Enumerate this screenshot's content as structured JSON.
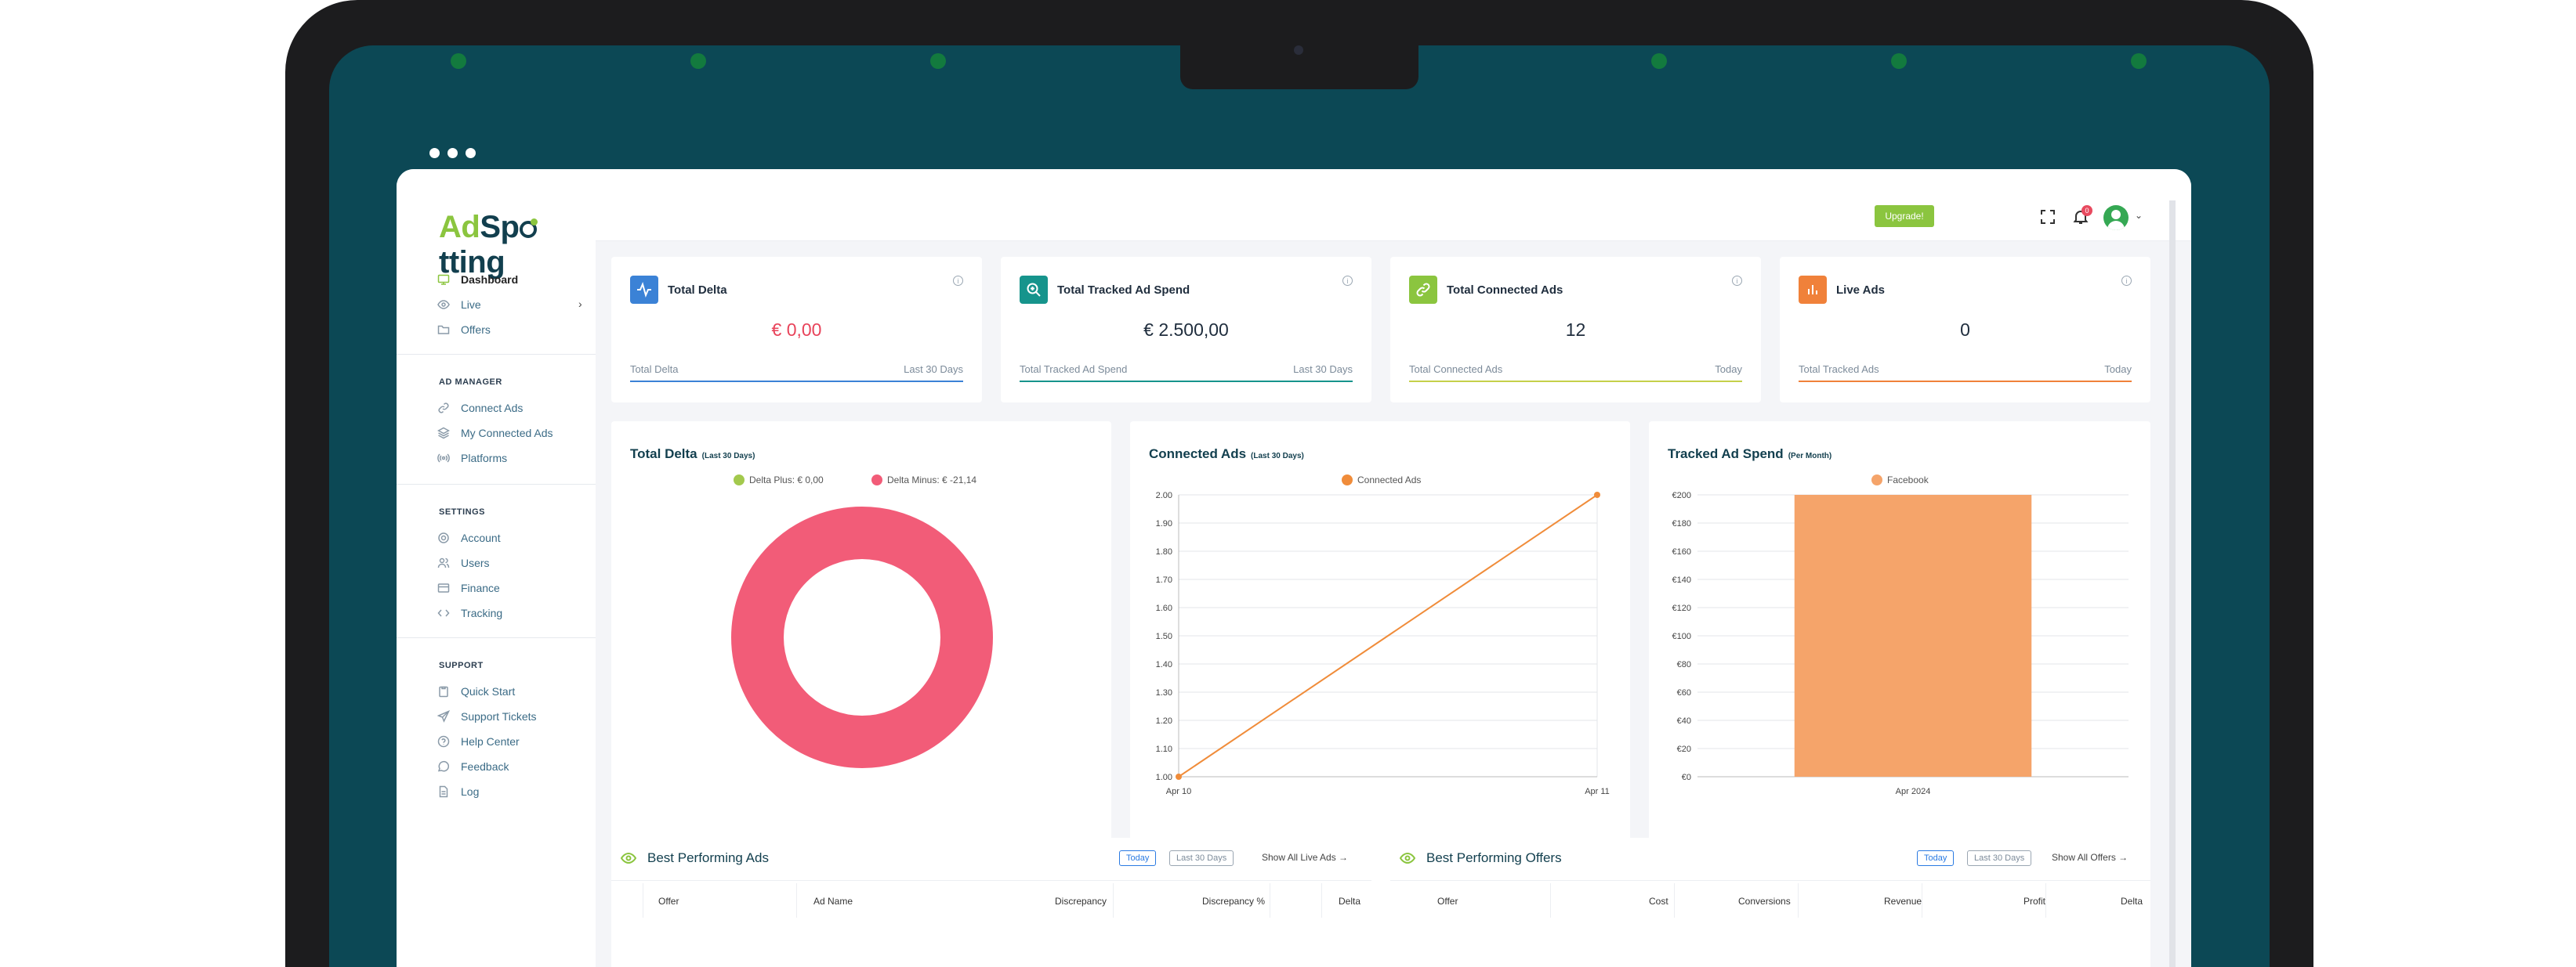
{
  "sidebar": {
    "items": [
      {
        "label": "Dashboard",
        "icon": "monitor-icon"
      },
      {
        "label": "Live",
        "icon": "eye-icon"
      },
      {
        "label": "Offers",
        "icon": "folder-icon"
      }
    ],
    "sections": [
      {
        "title": "AD MANAGER",
        "items": [
          {
            "label": "Connect Ads",
            "icon": "link-icon"
          },
          {
            "label": "My Connected Ads",
            "icon": "layers-icon"
          },
          {
            "label": "Platforms",
            "icon": "broadcast-icon"
          }
        ]
      },
      {
        "title": "SETTINGS",
        "items": [
          {
            "label": "Account",
            "icon": "gear-icon"
          },
          {
            "label": "Users",
            "icon": "users-icon"
          },
          {
            "label": "Finance",
            "icon": "credit-card-icon"
          },
          {
            "label": "Tracking",
            "icon": "code-icon"
          }
        ]
      },
      {
        "title": "SUPPORT",
        "items": [
          {
            "label": "Quick Start",
            "icon": "clipboard-icon"
          },
          {
            "label": "Support Tickets",
            "icon": "send-icon"
          },
          {
            "label": "Help Center",
            "icon": "help-circle-icon"
          },
          {
            "label": "Feedback",
            "icon": "chat-icon"
          },
          {
            "label": "Log",
            "icon": "file-icon"
          }
        ]
      }
    ]
  },
  "topbar": {
    "upgrade_label": "Upgrade!",
    "notification_count": "0"
  },
  "stats": [
    {
      "title": "Total Delta",
      "value": "€ 0,00",
      "foot_left": "Total Delta",
      "foot_right": "Last 30 Days",
      "icon": "activity-icon",
      "icon_color": "#3b82d6",
      "line_color": "#3b82d6",
      "value_color": "#e8435a"
    },
    {
      "title": "Total Tracked Ad Spend",
      "value": "€ 2.500,00",
      "foot_left": "Total Tracked Ad Spend",
      "foot_right": "Last 30 Days",
      "icon": "zoom-in-icon",
      "icon_color": "#16948c",
      "line_color": "#16948c",
      "value_color": "#1f2d3d"
    },
    {
      "title": "Total Connected Ads",
      "value": "12",
      "foot_left": "Total Connected Ads",
      "foot_right": "Today",
      "icon": "link-icon",
      "icon_color": "#8bc53f",
      "line_color": "#c5d04a",
      "value_color": "#1f2d3d"
    },
    {
      "title": "Live Ads",
      "value": "0",
      "foot_left": "Total Tracked Ads",
      "foot_right": "Today",
      "icon": "bar-chart-icon",
      "icon_color": "#f0813a",
      "line_color": "#f0813a",
      "value_color": "#1f2d3d"
    }
  ],
  "charts": {
    "delta": {
      "title": "Total Delta",
      "subtitle": "(Last 30 Days)"
    },
    "connected": {
      "title": "Connected Ads",
      "subtitle": "(Last 30 Days)"
    },
    "spend": {
      "title": "Tracked Ad Spend",
      "subtitle": "(Per Month)"
    }
  },
  "chart_data": [
    {
      "type": "pie",
      "title": "Total Delta (Last 30 Days)",
      "series": [
        {
          "name": "Delta Plus: € 0,00",
          "value": 0,
          "color": "#a3c94d"
        },
        {
          "name": "Delta Minus: € -21,14",
          "value": 21.14,
          "color": "#f25c78"
        }
      ]
    },
    {
      "type": "line",
      "title": "Connected Ads (Last 30 Days)",
      "x": [
        "Apr 10",
        "Apr 11"
      ],
      "series": [
        {
          "name": "Connected Ads",
          "values": [
            1.0,
            2.0
          ],
          "color": "#f08c3a"
        }
      ],
      "ylim": [
        1.0,
        2.0
      ],
      "yticks": [
        "1.00",
        "1.10",
        "1.20",
        "1.30",
        "1.40",
        "1.50",
        "1.60",
        "1.70",
        "1.80",
        "1.90",
        "2.00"
      ],
      "grid": true,
      "legend": "top-center"
    },
    {
      "type": "bar",
      "title": "Tracked Ad Spend (Per Month)",
      "categories": [
        "Apr 2024"
      ],
      "series": [
        {
          "name": "Facebook",
          "values": [
            200
          ],
          "color": "#f5a46a"
        }
      ],
      "ylim": [
        0,
        200
      ],
      "yticks": [
        "€0",
        "€20",
        "€40",
        "€60",
        "€80",
        "€100",
        "€120",
        "€140",
        "€160",
        "€180",
        "€200"
      ],
      "grid": true,
      "legend": "top-center"
    }
  ],
  "tables": {
    "ads": {
      "title": "Best Performing Ads",
      "filters": [
        "Today",
        "Last 30 Days"
      ],
      "link": "Show All Live Ads →",
      "columns": [
        "Offer",
        "Ad Name",
        "Discrepancy",
        "Discrepancy %",
        "Delta"
      ]
    },
    "offers": {
      "title": "Best Performing Offers",
      "filters": [
        "Today",
        "Last 30 Days"
      ],
      "link": "Show All Offers →",
      "columns": [
        "Offer",
        "Cost",
        "Conversions",
        "Revenue",
        "Profit",
        "Delta"
      ]
    }
  }
}
